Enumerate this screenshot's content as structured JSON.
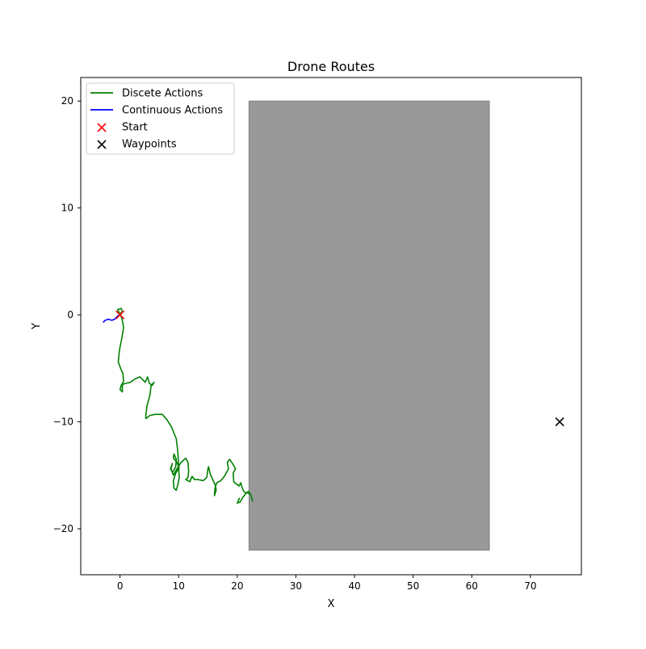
{
  "chart_data": {
    "type": "line",
    "title": "Drone Routes",
    "xlabel": "X",
    "ylabel": "Y",
    "xlim": [
      -6.7,
      78.7
    ],
    "ylim": [
      -24.3,
      22.2
    ],
    "xticks": [
      0,
      10,
      20,
      30,
      40,
      50,
      60,
      70
    ],
    "yticks": [
      -20,
      -10,
      0,
      10,
      20
    ],
    "grid": false,
    "legend_position": "top-left",
    "obstacle": {
      "x": [
        22,
        63
      ],
      "y": [
        -22,
        20
      ],
      "color": "#999999"
    },
    "series": [
      {
        "name": "Discete Actions",
        "kind": "line",
        "color": "#008000",
        "points": [
          [
            0,
            0
          ],
          [
            -0.4,
            0.5
          ],
          [
            0.2,
            0.6
          ],
          [
            0.4,
            0.3
          ],
          [
            0,
            0.1
          ],
          [
            0.3,
            -0.3
          ],
          [
            0.5,
            -0.8
          ],
          [
            0.6,
            -1.2
          ],
          [
            0.3,
            -2.2
          ],
          [
            -0.1,
            -3.3
          ],
          [
            -0.3,
            -4.4
          ],
          [
            0.1,
            -5.0
          ],
          [
            0.5,
            -5.5
          ],
          [
            0.6,
            -6.2
          ],
          [
            0.2,
            -6.6
          ],
          [
            0.0,
            -7.0
          ],
          [
            0.4,
            -7.2
          ],
          [
            0.4,
            -6.5
          ],
          [
            1.0,
            -6.4
          ],
          [
            1.8,
            -6.3
          ],
          [
            2.5,
            -6.0
          ],
          [
            3.4,
            -5.8
          ],
          [
            4.3,
            -6.3
          ],
          [
            4.7,
            -5.8
          ],
          [
            5.0,
            -6.4
          ],
          [
            5.5,
            -6.6
          ],
          [
            5.8,
            -6.3
          ],
          [
            5.3,
            -6.6
          ],
          [
            5.1,
            -7.5
          ],
          [
            4.6,
            -8.5
          ],
          [
            4.4,
            -9.4
          ],
          [
            4.4,
            -9.7
          ],
          [
            5.1,
            -9.4
          ],
          [
            6.0,
            -9.3
          ],
          [
            7.2,
            -9.3
          ],
          [
            8.0,
            -9.8
          ],
          [
            8.8,
            -10.5
          ],
          [
            9.6,
            -11.6
          ],
          [
            9.8,
            -12.5
          ],
          [
            9.9,
            -13.2
          ],
          [
            10.0,
            -14.2
          ],
          [
            10.1,
            -15.2
          ],
          [
            9.9,
            -15.8
          ],
          [
            9.6,
            -16.4
          ],
          [
            9.2,
            -16.2
          ],
          [
            9.1,
            -15.5
          ],
          [
            9.5,
            -14.8
          ],
          [
            10.1,
            -14.3
          ],
          [
            9.6,
            -13.7
          ],
          [
            9.1,
            -13.4
          ],
          [
            9.2,
            -13.0
          ],
          [
            9.6,
            -13.5
          ],
          [
            9.5,
            -14.2
          ],
          [
            9.0,
            -14.7
          ],
          [
            8.6,
            -14.4
          ],
          [
            8.9,
            -13.9
          ],
          [
            8.7,
            -14.4
          ],
          [
            9.1,
            -15.0
          ],
          [
            9.6,
            -14.5
          ],
          [
            10.4,
            -13.8
          ],
          [
            11.2,
            -13.4
          ],
          [
            11.6,
            -13.8
          ],
          [
            11.7,
            -14.6
          ],
          [
            11.6,
            -15.2
          ],
          [
            11.2,
            -15.4
          ],
          [
            11.9,
            -15.6
          ],
          [
            12.3,
            -15.1
          ],
          [
            12.7,
            -15.4
          ],
          [
            13.3,
            -15.4
          ],
          [
            14.2,
            -15.5
          ],
          [
            14.8,
            -15.2
          ],
          [
            15.0,
            -14.4
          ],
          [
            15.1,
            -14.2
          ],
          [
            15.4,
            -14.9
          ],
          [
            15.9,
            -15.5
          ],
          [
            16.3,
            -16.0
          ],
          [
            16.4,
            -16.4
          ],
          [
            16.1,
            -16.9
          ],
          [
            16.2,
            -16.2
          ],
          [
            16.5,
            -15.7
          ],
          [
            17.2,
            -15.5
          ],
          [
            17.8,
            -15.1
          ],
          [
            18.5,
            -14.4
          ],
          [
            18.3,
            -13.8
          ],
          [
            18.7,
            -13.5
          ],
          [
            19.3,
            -14.0
          ],
          [
            19.7,
            -14.4
          ],
          [
            19.3,
            -14.8
          ],
          [
            19.4,
            -15.6
          ],
          [
            19.8,
            -15.8
          ],
          [
            20.3,
            -16.0
          ],
          [
            20.6,
            -15.7
          ],
          [
            20.8,
            -16.1
          ],
          [
            21.1,
            -16.5
          ],
          [
            21.5,
            -16.7
          ],
          [
            21.9,
            -16.5
          ],
          [
            22.3,
            -16.8
          ],
          [
            22.6,
            -17.4
          ],
          [
            22.3,
            -16.8
          ],
          [
            21.6,
            -16.6
          ],
          [
            20.9,
            -17.1
          ],
          [
            20.5,
            -17.5
          ],
          [
            20.0,
            -17.6
          ],
          [
            20.4,
            -17.1
          ]
        ]
      },
      {
        "name": "Continuous Actions",
        "kind": "line",
        "color": "#0000ff",
        "points": [
          [
            -2.9,
            -0.7
          ],
          [
            -2.5,
            -0.5
          ],
          [
            -2.0,
            -0.4
          ],
          [
            -1.4,
            -0.5
          ],
          [
            -0.9,
            -0.4
          ],
          [
            -0.4,
            -0.1
          ],
          [
            0,
            0
          ]
        ]
      },
      {
        "name": "Start",
        "kind": "marker",
        "marker": "x",
        "color": "#ff0000",
        "points": [
          [
            0,
            0
          ]
        ]
      },
      {
        "name": "Waypoints",
        "kind": "marker",
        "marker": "x",
        "color": "#000000",
        "points": [
          [
            75,
            -10
          ]
        ]
      }
    ]
  }
}
